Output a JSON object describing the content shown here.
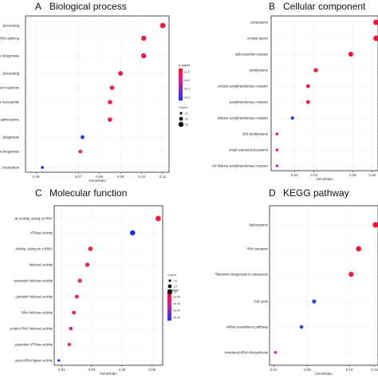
{
  "chart_data": [
    {
      "type": "scatter",
      "panel_letter": "A",
      "title": "Biological process",
      "xlabel": "GeneRatio",
      "ylabel": "",
      "xlim": [
        0.045,
        0.113
      ],
      "xticks": [
        "0.05",
        "0.07",
        "0.08",
        "0.09",
        "0.10",
        "0.11"
      ],
      "xtick_values": [
        0.05,
        0.07,
        0.08,
        0.09,
        0.1,
        0.11
      ],
      "categories": [
        "..processing",
        "..RNA splicing",
        "..complex biogenesis",
        "..processing",
        "..splicing, via transesterification reactions",
        "..transesterification reactions with bulged adenosine as nucleophile",
        "..spliceosome",
        "..biogenesis",
        "..ribosome biogenesis",
        "..localization"
      ],
      "x": [
        0.11,
        0.101,
        0.101,
        0.09,
        0.086,
        0.085,
        0.085,
        0.072,
        0.071,
        0.053
      ],
      "size": [
        3.4,
        3.2,
        3.2,
        3.0,
        2.9,
        2.9,
        2.9,
        2.5,
        2.4,
        1.9
      ],
      "color": [
        "#ea1a3c",
        "#e61e44",
        "#e61e44",
        "#e2244c",
        "#de2a54",
        "#de2a54",
        "#de2a54",
        "#3a3ad6",
        "#d23466",
        "#2638e0"
      ],
      "legend": {
        "color_title": "p.adjust",
        "size_title": "Count",
        "size_values": [
          "10",
          "20",
          "30"
        ],
        "color_ticks": [
          "1e-5",
          "2e-5",
          "3e-5",
          "4e-5"
        ]
      }
    },
    {
      "type": "scatter",
      "panel_letter": "B",
      "title": "Cellular component",
      "xlabel": "GeneRatio",
      "ylabel": "",
      "xlim": [
        0.008,
        0.063
      ],
      "xticks": [
        "0.02",
        "0.03",
        "0.05",
        "0.06"
      ],
      "xtick_values": [
        0.02,
        0.03,
        0.05,
        0.06
      ],
      "categories": [
        "centrosome",
        "nuclear speck",
        "spliceosomal complex",
        "preribosome",
        "protein acetyltransferase complex",
        "acetyltransferase complex",
        "histone acetyltransferase complex",
        "90S preribosome",
        "small-subunit processome",
        "H4 histone acetyltransferase complex"
      ],
      "x": [
        0.062,
        0.062,
        0.049,
        0.031,
        0.027,
        0.027,
        0.019,
        0.011,
        0.011,
        0.011
      ],
      "size": [
        3.5,
        3.5,
        3.1,
        2.7,
        2.5,
        2.5,
        2.2,
        1.7,
        1.7,
        1.7
      ],
      "color": [
        "#ea1a3c",
        "#ea1a3c",
        "#e61e44",
        "#e62040",
        "#e22650",
        "#e22650",
        "#2a3ed2",
        "#e01e4c",
        "#e01e4c",
        "#c62caa"
      ],
      "legend": {}
    },
    {
      "type": "scatter",
      "panel_letter": "C",
      "title": "Molecular function",
      "xlabel": "GeneRatio",
      "ylabel": "",
      "xlim": [
        0.015,
        0.087
      ],
      "xticks": [
        "0.02",
        "0.04",
        "0.06",
        "0.08"
      ],
      "xtick_values": [
        0.02,
        0.04,
        0.06,
        0.08
      ],
      "categories": [
        "..tic activity, acting on RNA",
        "ATPase activity",
        "..activity, acting on a tRNA",
        "helicase activity",
        "..ependent helicase activity",
        "..pendent helicase activity",
        "RNA helicase activity",
        "..endent RNA helicase activity",
        "..ependent ATPase activity",
        "..oacyl-tRNA ligase activity"
      ],
      "x": [
        0.084,
        0.067,
        0.039,
        0.037,
        0.032,
        0.03,
        0.028,
        0.026,
        0.025,
        0.018
      ],
      "size": [
        3.4,
        3.3,
        2.9,
        2.8,
        2.6,
        2.5,
        2.4,
        2.3,
        2.2,
        1.8
      ],
      "color": [
        "#ea1a3c",
        "#1e36e2",
        "#e82a44",
        "#e02a56",
        "#d72e74",
        "#d72e74",
        "#e2284a",
        "#d22e86",
        "#d22e86",
        "#2a40ce"
      ],
      "legend": {
        "color_title": "p.adjust",
        "size_title": "Count",
        "size_values": [
          "10",
          "20",
          "30"
        ],
        "color_ticks": [
          "1e-05",
          "2e-05",
          "3e-05",
          "4e-05"
        ]
      }
    },
    {
      "type": "scatter",
      "panel_letter": "D",
      "title": "KEGG pathway",
      "xlabel": "GeneRatio",
      "ylabel": "",
      "xlim": [
        0.005,
        0.134
      ],
      "xticks": [
        "0.01",
        "0.05",
        "0.10",
        "0.13"
      ],
      "xtick_values": [
        0.01,
        0.05,
        0.1,
        0.13
      ],
      "categories": [
        "Spliceosome",
        "RNA transport",
        "Ribosome biogenesis in eukaryotes",
        "Cell cycle",
        "mRNA surveillance pathway",
        "Aminoacyl-tRNA biosynthesis"
      ],
      "x": [
        0.131,
        0.111,
        0.102,
        0.058,
        0.043,
        0.012
      ],
      "size": [
        3.6,
        3.4,
        3.2,
        2.6,
        2.3,
        1.8
      ],
      "color": [
        "#ea1a3c",
        "#e61e44",
        "#e2224a",
        "#2a44cc",
        "#2a44cc",
        "#c22aa8"
      ],
      "legend": {}
    }
  ]
}
